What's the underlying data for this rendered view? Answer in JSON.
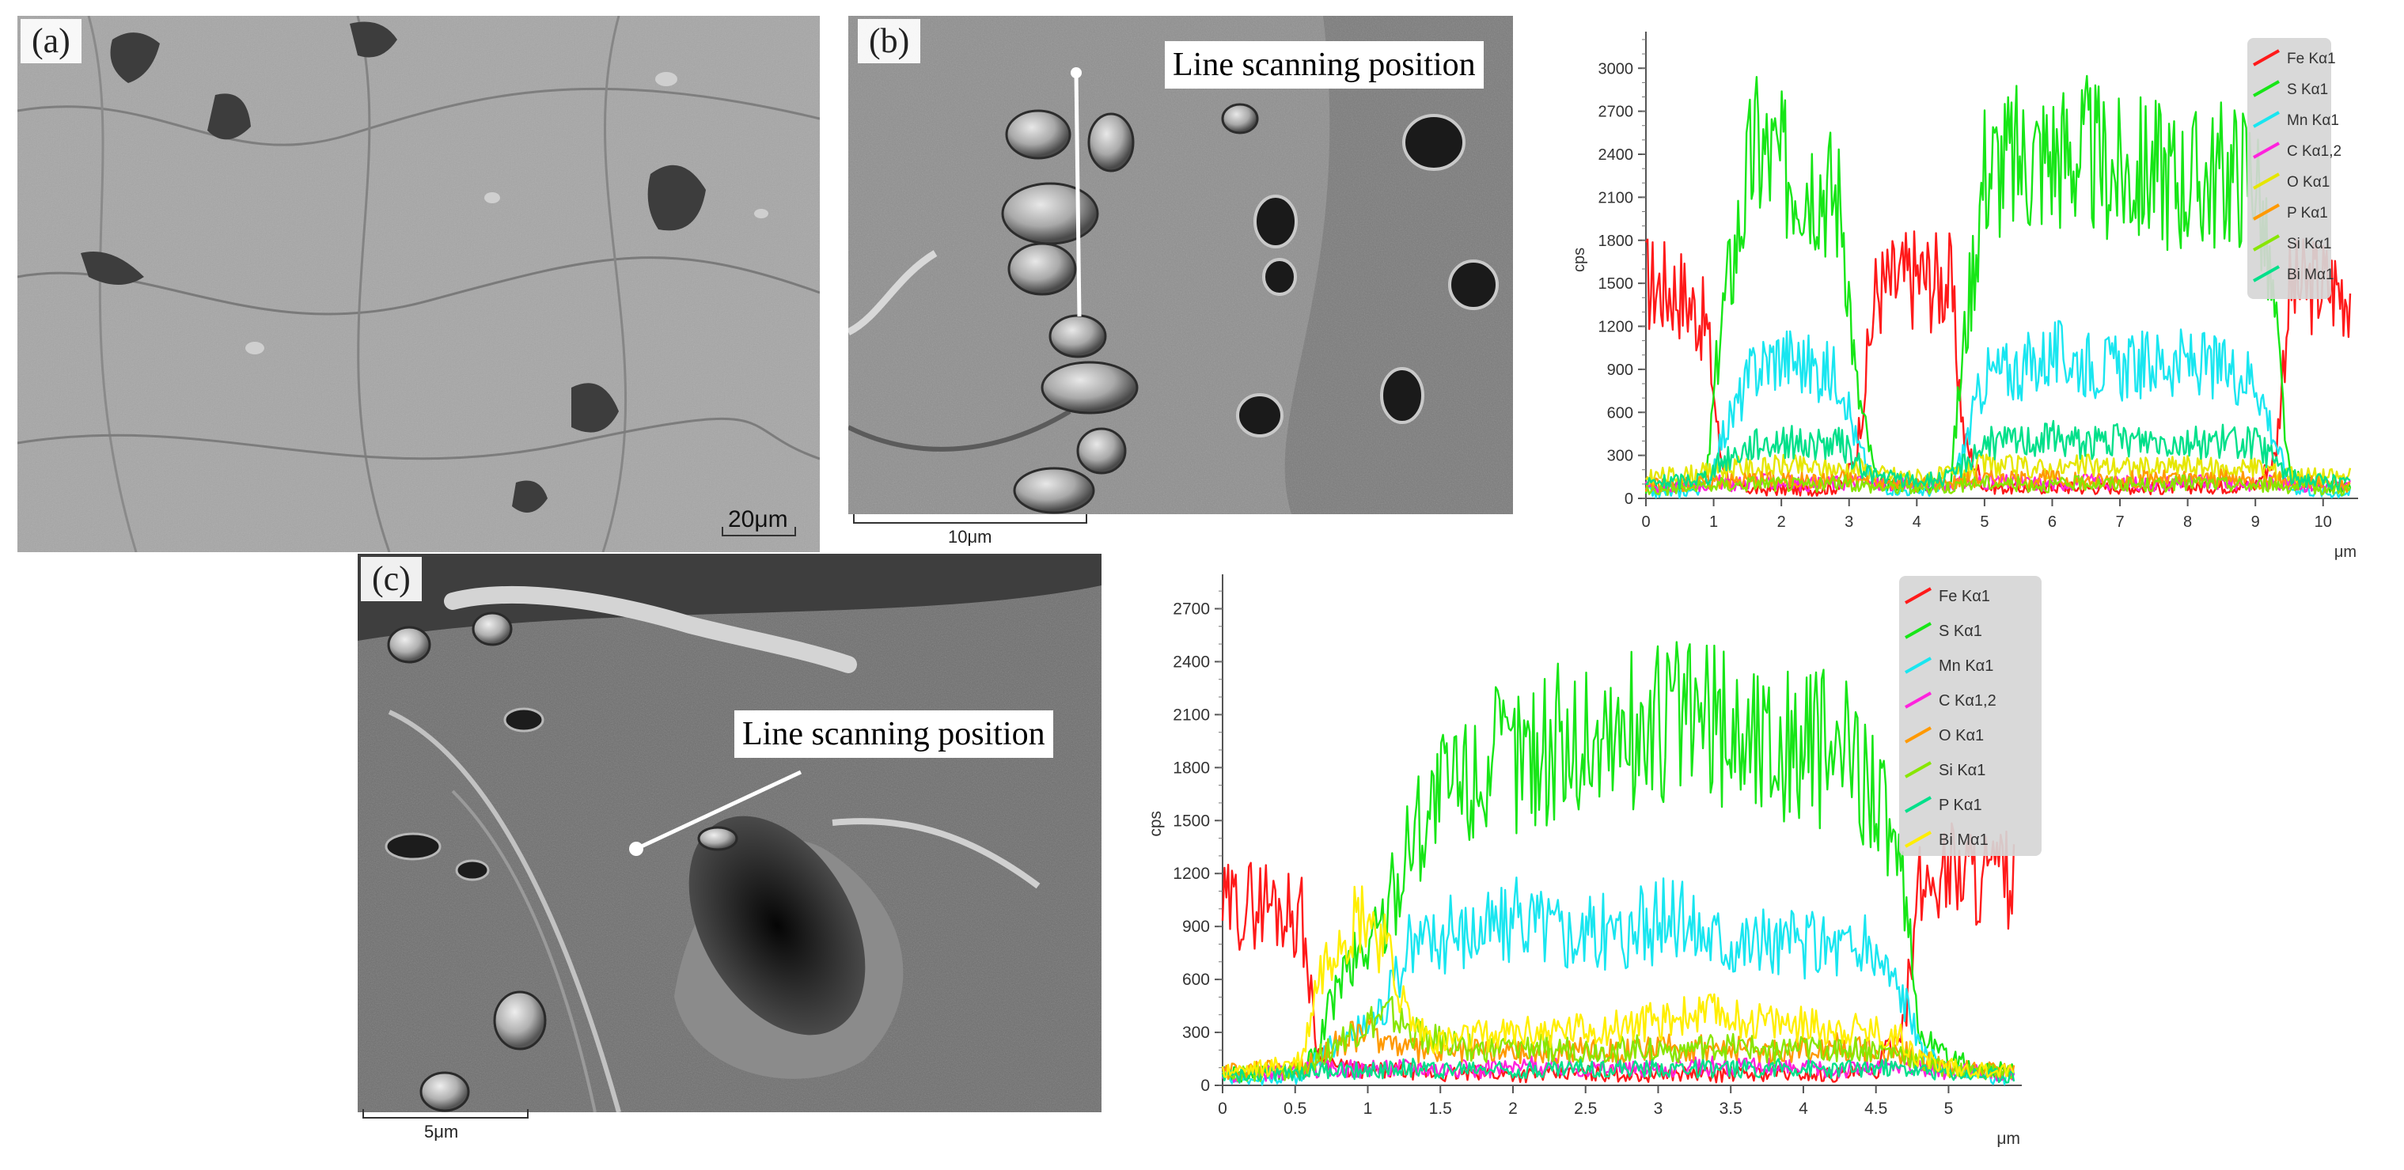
{
  "panels": {
    "a": {
      "label": "(a)",
      "scale": "20μm"
    },
    "b": {
      "label": "(b)",
      "scan_label": "Line scanning position",
      "scale": "10μm"
    },
    "c": {
      "label": "(c)",
      "scan_label": "Line scanning position",
      "scale": "5μm"
    }
  },
  "chart_data": [
    {
      "type": "line",
      "title": "",
      "xlabel": "μm",
      "ylabel": "cps",
      "xlim": [
        0,
        10.4
      ],
      "ylim": [
        0,
        3200
      ],
      "xticks": [
        0,
        1,
        2,
        3,
        4,
        5,
        6,
        7,
        8,
        9,
        10
      ],
      "yticks": [
        0,
        300,
        600,
        900,
        1200,
        1500,
        1800,
        2100,
        2400,
        2700,
        3000
      ],
      "legend_position": "top-right",
      "grid": false,
      "x": [
        0,
        0.5,
        0.9,
        1.1,
        1.3,
        1.6,
        2.0,
        2.5,
        2.9,
        3.1,
        3.4,
        4.0,
        4.5,
        4.7,
        5.0,
        5.5,
        6.0,
        6.5,
        7.0,
        7.5,
        8.0,
        8.5,
        9.0,
        9.3,
        9.5,
        10.0,
        10.4
      ],
      "series": [
        {
          "name": "Fe Kα1",
          "color": "#ff1a1a",
          "values": [
            1500,
            1450,
            1200,
            300,
            80,
            60,
            60,
            60,
            80,
            300,
            1450,
            1550,
            1500,
            400,
            80,
            70,
            80,
            70,
            80,
            70,
            80,
            80,
            90,
            300,
            1450,
            1500,
            1450
          ]
        },
        {
          "name": "S Kα1",
          "color": "#17e617",
          "values": [
            60,
            70,
            150,
            1200,
            1700,
            2450,
            2300,
            2250,
            2050,
            800,
            120,
            80,
            120,
            1100,
            2300,
            2350,
            2400,
            2400,
            2250,
            2300,
            2200,
            2250,
            2300,
            1200,
            150,
            80,
            70
          ]
        },
        {
          "name": "Mn Kα1",
          "color": "#19e6f0",
          "values": [
            40,
            40,
            80,
            400,
            600,
            900,
            1000,
            900,
            850,
            400,
            80,
            50,
            60,
            350,
            850,
            900,
            1000,
            950,
            900,
            950,
            950,
            900,
            850,
            400,
            80,
            40,
            40
          ]
        },
        {
          "name": "C Kα1,2",
          "color": "#ff22dd",
          "values": [
            80,
            90,
            100,
            110,
            100,
            120,
            110,
            100,
            110,
            120,
            100,
            90,
            100,
            110,
            120,
            110,
            100,
            120,
            110,
            100,
            120,
            110,
            100,
            120,
            100,
            90,
            80
          ]
        },
        {
          "name": "O Kα1",
          "color": "#e6e600",
          "values": [
            150,
            160,
            180,
            200,
            220,
            200,
            230,
            210,
            200,
            220,
            170,
            150,
            160,
            200,
            230,
            220,
            200,
            230,
            220,
            210,
            230,
            200,
            220,
            200,
            170,
            150,
            150
          ]
        },
        {
          "name": "P Kα1",
          "color": "#ff9900",
          "values": [
            90,
            100,
            110,
            130,
            120,
            140,
            130,
            120,
            140,
            130,
            110,
            100,
            110,
            130,
            140,
            130,
            140,
            120,
            130,
            140,
            130,
            140,
            120,
            130,
            110,
            100,
            90
          ]
        },
        {
          "name": "Si Kα1",
          "color": "#88e600",
          "values": [
            60,
            70,
            80,
            100,
            90,
            110,
            100,
            90,
            110,
            100,
            80,
            70,
            80,
            100,
            110,
            100,
            90,
            110,
            100,
            90,
            110,
            100,
            90,
            100,
            80,
            70,
            60
          ]
        },
        {
          "name": "Bi Mα1",
          "color": "#00e08a",
          "values": [
            100,
            120,
            150,
            250,
            300,
            380,
            400,
            370,
            380,
            250,
            150,
            120,
            140,
            250,
            380,
            400,
            420,
            390,
            400,
            410,
            390,
            400,
            380,
            260,
            150,
            120,
            100
          ]
        }
      ]
    },
    {
      "type": "line",
      "title": "",
      "xlabel": "μm",
      "ylabel": "cps",
      "xlim": [
        0,
        5.45
      ],
      "ylim": [
        0,
        2850
      ],
      "xticks": [
        0,
        0.5,
        1,
        1.5,
        2,
        2.5,
        3,
        3.5,
        4,
        4.5,
        5
      ],
      "yticks": [
        0,
        300,
        600,
        900,
        1200,
        1500,
        1800,
        2100,
        2400,
        2700
      ],
      "legend_position": "top-right",
      "grid": false,
      "x": [
        0,
        0.3,
        0.55,
        0.65,
        0.8,
        1.0,
        1.15,
        1.3,
        1.5,
        1.8,
        2.1,
        2.5,
        2.9,
        3.1,
        3.4,
        3.8,
        4.2,
        4.5,
        4.7,
        4.8,
        5.0,
        5.2,
        5.45
      ],
      "series": [
        {
          "name": "Fe Kα1",
          "color": "#ff1a1a",
          "values": [
            1000,
            1050,
            950,
            200,
            100,
            80,
            80,
            80,
            60,
            70,
            60,
            70,
            60,
            70,
            60,
            70,
            60,
            70,
            400,
            1100,
            1250,
            1200,
            1150
          ]
        },
        {
          "name": "S Kα1",
          "color": "#17e617",
          "values": [
            60,
            70,
            80,
            200,
            600,
            800,
            1000,
            1450,
            1650,
            1800,
            1900,
            1950,
            2000,
            2100,
            2050,
            1950,
            1900,
            1750,
            1000,
            300,
            150,
            100,
            80
          ]
        },
        {
          "name": "Mn Kα1",
          "color": "#19e6f0",
          "values": [
            40,
            40,
            50,
            150,
            250,
            350,
            500,
            800,
            850,
            900,
            950,
            850,
            900,
            950,
            850,
            800,
            800,
            750,
            500,
            200,
            80,
            50,
            40
          ]
        },
        {
          "name": "C Kα1,2",
          "color": "#ff22dd",
          "values": [
            60,
            70,
            80,
            90,
            100,
            90,
            100,
            110,
            100,
            90,
            110,
            100,
            90,
            100,
            110,
            100,
            90,
            100,
            110,
            90,
            80,
            70,
            60
          ]
        },
        {
          "name": "O Kα1",
          "color": "#ff9900",
          "values": [
            80,
            90,
            100,
            150,
            250,
            300,
            250,
            200,
            180,
            200,
            190,
            210,
            200,
            220,
            210,
            200,
            220,
            200,
            190,
            150,
            100,
            90,
            80
          ]
        },
        {
          "name": "Si Kα1",
          "color": "#88e600",
          "values": [
            60,
            70,
            80,
            150,
            250,
            350,
            400,
            300,
            250,
            200,
            220,
            200,
            210,
            200,
            220,
            200,
            210,
            200,
            180,
            120,
            90,
            80,
            70
          ]
        },
        {
          "name": "P Kα1",
          "color": "#00e08a",
          "values": [
            50,
            60,
            70,
            80,
            90,
            80,
            90,
            100,
            90,
            100,
            90,
            100,
            90,
            100,
            90,
            100,
            90,
            100,
            90,
            80,
            70,
            60,
            50
          ]
        },
        {
          "name": "Bi Mα1",
          "color": "#ffee00",
          "values": [
            80,
            100,
            150,
            600,
            900,
            1000,
            700,
            350,
            250,
            280,
            300,
            320,
            350,
            380,
            400,
            350,
            330,
            300,
            250,
            150,
            100,
            90,
            80
          ]
        }
      ]
    }
  ]
}
